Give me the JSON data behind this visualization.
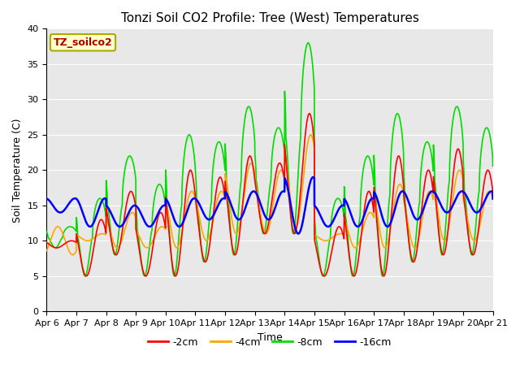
{
  "title": "Tonzi Soil CO2 Profile: Tree (West) Temperatures",
  "xlabel": "Time",
  "ylabel": "Soil Temperature (C)",
  "ylim": [
    0,
    40
  ],
  "yticks": [
    0,
    5,
    10,
    15,
    20,
    25,
    30,
    35,
    40
  ],
  "xtick_labels": [
    "Apr 6",
    "Apr 7",
    "Apr 8",
    "Apr 9",
    "Apr 10",
    "Apr 11",
    "Apr 12",
    "Apr 13",
    "Apr 14",
    "Apr 15",
    "Apr 16",
    "Apr 17",
    "Apr 18",
    "Apr 19",
    "Apr 20",
    "Apr 21"
  ],
  "colors": {
    "2cm": "#ff0000",
    "4cm": "#ffa500",
    "8cm": "#00dd00",
    "16cm": "#0000ff"
  },
  "legend_box_color": "#ffffcc",
  "legend_box_edge_color": "#aaaa00",
  "legend_label_color": "#aa0000",
  "legend_text": "TZ_soilco2",
  "bg_color": "#e8e8e8",
  "title_fontsize": 11,
  "axis_fontsize": 9,
  "tick_fontsize": 8
}
